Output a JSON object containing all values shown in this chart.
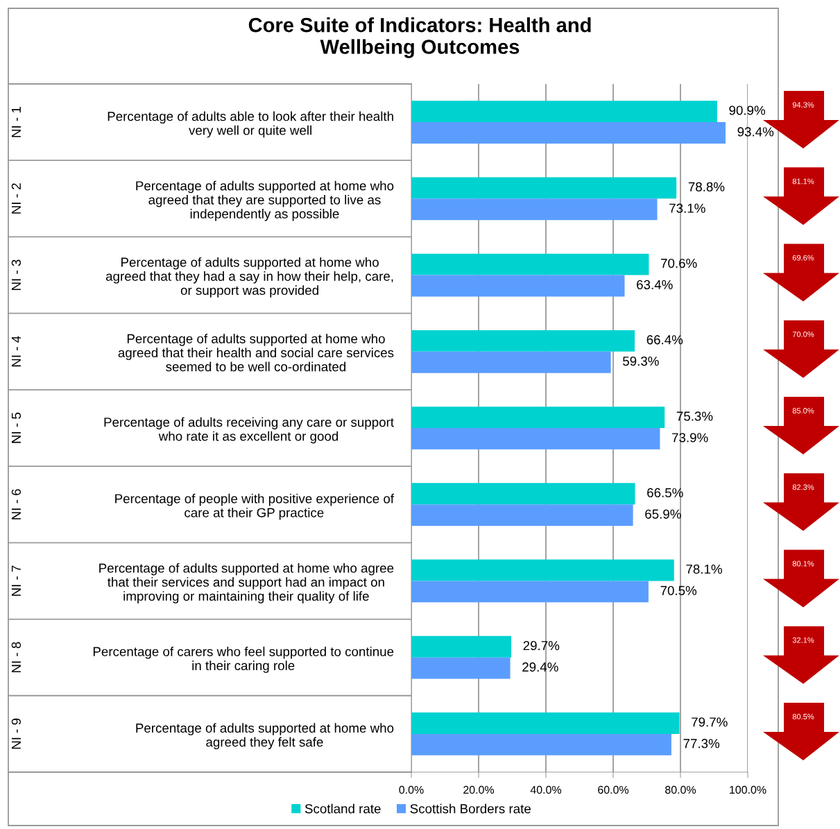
{
  "chart_data": {
    "type": "bar",
    "orientation": "horizontal",
    "title": "Core Suite of Indicators: Health and\nWellbeing Outcomes",
    "categories": [
      "Percentage of adults able to look after their health\nvery well or quite well",
      "Percentage of adults supported at home who\nagreed that they are supported to live as\nindependently as possible",
      "Percentage of adults supported at home who\nagreed that they had a say in how their help, care,\nor support was provided",
      "Percentage of adults supported at home who\nagreed that their health and social care services\nseemed to be well co-ordinated",
      "Percentage of adults receiving any care or support\nwho rate it as excellent or good",
      "Percentage of people with positive experience of\ncare at their GP practice",
      "Percentage of adults supported at home who agree\nthat their services and support had an impact on\nimproving or maintaining their quality of life",
      "Percentage of carers who feel supported to continue\nin their caring role",
      "Percentage of adults supported at home who\nagreed they felt safe"
    ],
    "series": [
      {
        "name": "Scotland rate",
        "color": "#00d2d0",
        "values": [
          90.9,
          78.8,
          70.6,
          66.4,
          75.3,
          66.5,
          78.1,
          29.7,
          79.7
        ],
        "value_labels": [
          "90.9%",
          "78.8%",
          "70.6%",
          "66.4%",
          "75.3%",
          "66.5%",
          "78.1%",
          "29.7%",
          "79.7%"
        ]
      },
      {
        "name": "Scottish Borders rate",
        "color": "#5b9dff",
        "values": [
          93.4,
          73.1,
          63.4,
          59.3,
          73.9,
          65.9,
          70.5,
          29.4,
          77.3
        ],
        "value_labels": [
          "93.4%",
          "73.1%",
          "63.4%",
          "59.3%",
          "73.9%",
          "65.9%",
          "70.5%",
          "29.4%",
          "77.3%"
        ]
      }
    ],
    "xlim": [
      0,
      100
    ],
    "xticks": [
      {
        "value": 0,
        "label": "0.0%"
      },
      {
        "value": 20,
        "label": "20.0%"
      },
      {
        "value": 40,
        "label": "40.0%"
      },
      {
        "value": 60,
        "label": "60.0%"
      },
      {
        "value": 80,
        "label": "80.0%"
      },
      {
        "value": 100,
        "label": "100.0%"
      }
    ],
    "grid": "x",
    "legend": "bottom",
    "annotations": [
      "NI - 1",
      "NI - 2",
      "NI - 3",
      "NI - 4",
      "NI - 5",
      "NI - 6",
      "NI - 7",
      "NI - 8",
      "NI - 9",
      "94.3%",
      "81.1%",
      "69.6%",
      "70.0%",
      "85.0%",
      "82.3%",
      "80.1%",
      "32.1%",
      "80.5%"
    ]
  }
}
